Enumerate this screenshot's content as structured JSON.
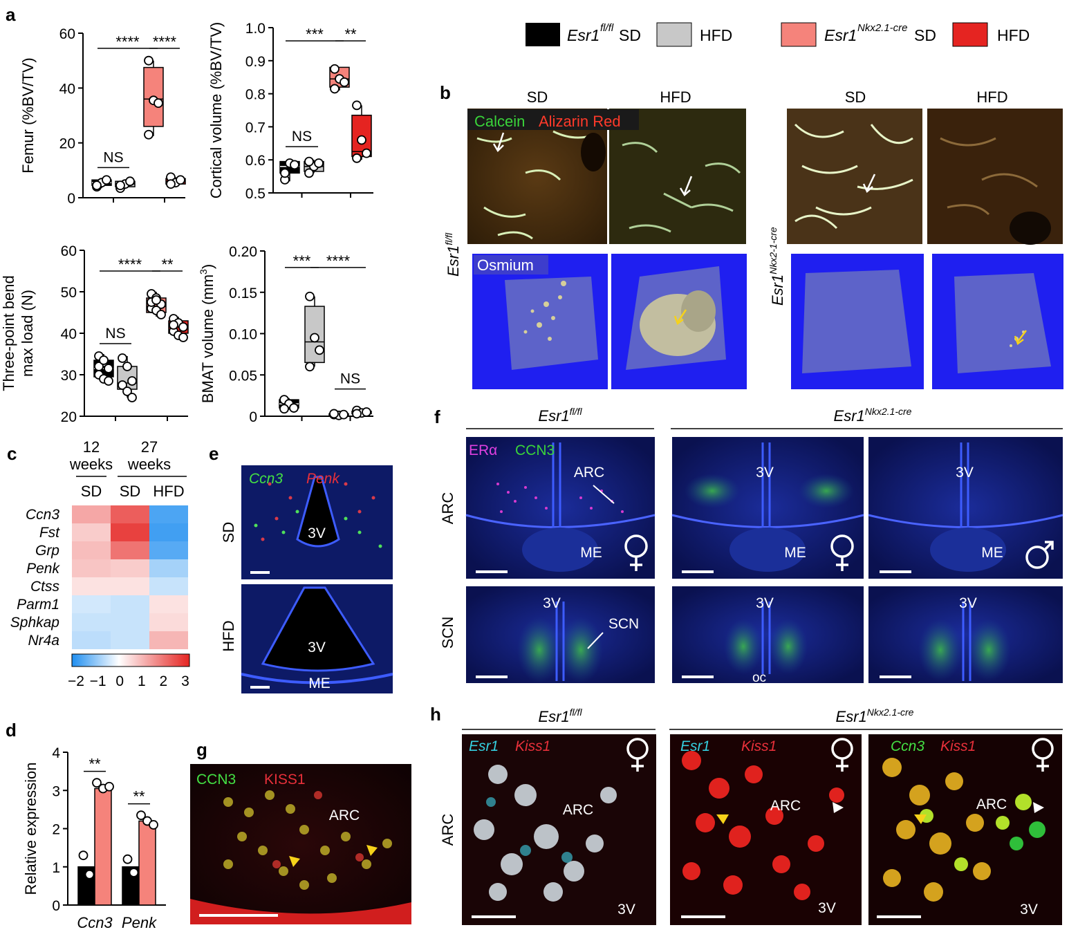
{
  "panel_letters": [
    "a",
    "b",
    "c",
    "d",
    "e",
    "f",
    "g",
    "h"
  ],
  "legend": [
    {
      "genotype": "Esr1",
      "sup": "fl/fl",
      "diet1": "SD",
      "diet2": "HFD",
      "color1": "#000000",
      "color2": "#c8c8c8"
    },
    {
      "genotype": "Esr1",
      "sup": "Nkx2.1-cre",
      "diet1": "SD",
      "diet2": "HFD",
      "color1": "#f5837b",
      "color2": "#e52421"
    }
  ],
  "colors": {
    "fl_sd": "#000000",
    "fl_hfd": "#c8c8c8",
    "cre_sd": "#f5837b",
    "cre_hfd": "#e52421"
  },
  "chart_data": [
    {
      "type": "box",
      "id": "femur",
      "ylabel": "Femur (%BV/TV)",
      "ylim": [
        0,
        60
      ],
      "yticks": [
        "0",
        "20",
        "40",
        "60"
      ],
      "groups": [
        {
          "series": "Esr1fl/fl SD",
          "color": "#000000",
          "q1": 4.5,
          "median": 5.5,
          "q3": 6.5,
          "min": 3.5,
          "max": 7,
          "points": [
            4,
            5.5,
            6.5,
            4.5
          ]
        },
        {
          "series": "Esr1fl/fl HFD",
          "color": "#c8c8c8",
          "q1": 4,
          "median": 5,
          "q3": 6,
          "min": 3.5,
          "max": 6,
          "points": [
            3.5,
            5,
            6,
            4.5
          ]
        },
        {
          "series": "Esr1Nkx2.1-cre SD",
          "color": "#f5837b",
          "q1": 26,
          "median": 36,
          "q3": 47.5,
          "min": 22.5,
          "max": 50,
          "points": [
            50,
            35.5,
            34.5,
            23
          ]
        },
        {
          "series": "Esr1Nkx2.1-cre HFD",
          "color": "#e52421",
          "q1": 5,
          "median": 6,
          "q3": 7,
          "min": 4.5,
          "max": 7.5,
          "points": [
            7.5,
            5.5,
            6.5,
            5
          ]
        }
      ],
      "xtick_positions": [
        1.5,
        3.5
      ],
      "significance": [
        {
          "from": 1,
          "to": 3,
          "label": "****",
          "y": 54.5
        },
        {
          "from": 3,
          "to": 4,
          "label": "****",
          "y": 54.5
        },
        {
          "from": 1,
          "to": 2,
          "label": "NS",
          "y": 11
        }
      ]
    },
    {
      "type": "box",
      "id": "cortical",
      "ylabel": "Cortical volume (%BV/TV)",
      "ylim": [
        0.5,
        1.0
      ],
      "yticks": [
        "0.5",
        "0.6",
        "0.7",
        "0.8",
        "0.9",
        "1.0"
      ],
      "groups": [
        {
          "series": "Esr1fl/fl SD",
          "color": "#000000",
          "q1": 0.56,
          "median": 0.58,
          "q3": 0.595,
          "min": 0.535,
          "max": 0.6,
          "points": [
            0.54,
            0.59,
            0.585,
            0.56
          ]
        },
        {
          "series": "Esr1fl/fl HFD",
          "color": "#c8c8c8",
          "q1": 0.565,
          "median": 0.58,
          "q3": 0.595,
          "min": 0.56,
          "max": 0.6,
          "points": [
            0.56,
            0.58,
            0.59,
            0.595
          ]
        },
        {
          "series": "Esr1Nkx2.1-cre SD",
          "color": "#f5837b",
          "q1": 0.82,
          "median": 0.845,
          "q3": 0.88,
          "min": 0.81,
          "max": 0.88,
          "points": [
            0.875,
            0.845,
            0.835,
            0.815
          ]
        },
        {
          "series": "Esr1Nkx2.1-cre HFD",
          "color": "#e52421",
          "q1": 0.61,
          "median": 0.625,
          "q3": 0.735,
          "min": 0.6,
          "max": 0.765,
          "points": [
            0.765,
            0.66,
            0.62,
            0.605
          ]
        }
      ],
      "xtick_positions": [
        1.5,
        3.5
      ],
      "significance": [
        {
          "from": 1,
          "to": 3,
          "label": "***",
          "y": 0.96
        },
        {
          "from": 3,
          "to": 4,
          "label": "**",
          "y": 0.96
        },
        {
          "from": 1,
          "to": 2,
          "label": "NS",
          "y": 0.64
        }
      ]
    },
    {
      "type": "box",
      "id": "threepoint",
      "ylabel_lines": [
        "Three-point bend",
        "max load (N)"
      ],
      "ylim": [
        20,
        60
      ],
      "yticks": [
        "20",
        "30",
        "40",
        "50",
        "60"
      ],
      "groups": [
        {
          "series": "Esr1fl/fl SD",
          "color": "#000000",
          "q1": 29.5,
          "median": 31.5,
          "q3": 33.5,
          "min": 28,
          "max": 35,
          "points": [
            34.5,
            33,
            31.5,
            30,
            29,
            28.5,
            32,
            33.5
          ]
        },
        {
          "series": "Esr1fl/fl HFD",
          "color": "#c8c8c8",
          "q1": 26.5,
          "median": 28,
          "q3": 32,
          "min": 24.5,
          "max": 34.5,
          "points": [
            34,
            32,
            28.5,
            27.5,
            26,
            24.5
          ]
        },
        {
          "series": "Esr1Nkx2.1-cre SD",
          "color": "#f5837b",
          "q1": 45,
          "median": 46.5,
          "q3": 48.5,
          "min": 44,
          "max": 50,
          "points": [
            49.5,
            48.5,
            47,
            46,
            45.5,
            44.5,
            47.5,
            48
          ]
        },
        {
          "series": "Esr1Nkx2.1-cre HFD",
          "color": "#e52421",
          "q1": 40,
          "median": 41.5,
          "q3": 43,
          "min": 38.5,
          "max": 44,
          "points": [
            43.5,
            42.5,
            41.5,
            40.5,
            39.5,
            39,
            42
          ]
        }
      ],
      "xtick_positions": [
        1.5,
        3.5
      ],
      "significance": [
        {
          "from": 1,
          "to": 3,
          "label": "****",
          "y": 55
        },
        {
          "from": 3,
          "to": 4,
          "label": "**",
          "y": 55
        },
        {
          "from": 1,
          "to": 2,
          "label": "NS",
          "y": 37.5
        }
      ]
    },
    {
      "type": "box",
      "id": "bmat",
      "ylabel": "BMAT volume (mm",
      "ylabel_sup": "3",
      "ylabel_end": ")",
      "ylim": [
        0,
        0.2
      ],
      "yticks": [
        "0",
        "0.05",
        "0.10",
        "0.15",
        "0.20"
      ],
      "groups": [
        {
          "series": "Esr1fl/fl SD",
          "color": "#000000",
          "q1": 0.01,
          "median": 0.015,
          "q3": 0.02,
          "min": 0.008,
          "max": 0.022,
          "points": [
            0.02,
            0.015,
            0.01,
            0.009
          ]
        },
        {
          "series": "Esr1fl/fl HFD",
          "color": "#c8c8c8",
          "q1": 0.065,
          "median": 0.09,
          "q3": 0.133,
          "min": 0.06,
          "max": 0.145,
          "points": [
            0.145,
            0.095,
            0.08,
            0.06
          ]
        },
        {
          "series": "Esr1Nkx2.1-cre SD",
          "color": "#f5837b",
          "q1": 0.001,
          "median": 0.002,
          "q3": 0.003,
          "min": 0.001,
          "max": 0.004,
          "points": [
            0.002,
            0.001,
            0.002,
            0.003
          ]
        },
        {
          "series": "Esr1Nkx2.1-cre HFD",
          "color": "#e52421",
          "q1": 0.003,
          "median": 0.004,
          "q3": 0.006,
          "min": 0.002,
          "max": 0.007,
          "points": [
            0.007,
            0.004,
            0.005,
            0.003
          ]
        }
      ],
      "xtick_positions": [
        1.5,
        3.5
      ],
      "significance": [
        {
          "from": 1,
          "to": 2,
          "label": "***",
          "y": 0.18
        },
        {
          "from": 2,
          "to": 4,
          "label": "****",
          "y": 0.18
        },
        {
          "from": 3,
          "to": 4,
          "label": "NS",
          "y": 0.033
        }
      ]
    },
    {
      "type": "heatmap",
      "id": "heatmap",
      "header_groups": [
        {
          "label_lines": [
            "12",
            "weeks"
          ]
        },
        {
          "label_lines": [
            "27",
            "weeks"
          ]
        }
      ],
      "columns": [
        "SD",
        "SD",
        "HFD"
      ],
      "rows": [
        "Ccn3",
        "Fst",
        "Grp",
        "Penk",
        "Ctss",
        "Parm1",
        "Sphkap",
        "Nr4a"
      ],
      "values": [
        [
          1.2,
          2.2,
          -1.6
        ],
        [
          0.7,
          2.6,
          -1.7
        ],
        [
          0.9,
          1.9,
          -1.5
        ],
        [
          0.8,
          0.7,
          -0.8
        ],
        [
          0.4,
          0.4,
          -0.5
        ],
        [
          -0.4,
          -0.5,
          0.4
        ],
        [
          -0.5,
          -0.5,
          0.5
        ],
        [
          -0.6,
          -0.5,
          1.0
        ]
      ],
      "colorbar": {
        "min": -2,
        "max": 3,
        "ticks": [
          "−2",
          "−1",
          "0",
          "1",
          "2",
          "3"
        ]
      }
    },
    {
      "type": "bar",
      "id": "relexpr",
      "ylabel": "Relative expression",
      "ylim": [
        0,
        4
      ],
      "yticks": [
        "0",
        "1",
        "2",
        "3",
        "4"
      ],
      "categories": [
        "Ccn3",
        "Penk"
      ],
      "series": [
        {
          "name": "Esr1fl/fl",
          "color": "#000000",
          "values": [
            1.0,
            1.0
          ],
          "points": [
            [
              1.3,
              0.8
            ],
            [
              1.2,
              0.85
            ]
          ]
        },
        {
          "name": "Esr1Nkx2.1-cre",
          "color": "#f5837b",
          "values": [
            3.05,
            2.2
          ],
          "points": [
            [
              3.2,
              3.05,
              3.1
            ],
            [
              2.35,
              2.2,
              2.1
            ]
          ]
        }
      ],
      "significance": [
        {
          "category": 0,
          "label": "**",
          "y": 3.5
        },
        {
          "category": 1,
          "label": "**",
          "y": 2.65
        }
      ]
    }
  ],
  "panel_b": {
    "col_headers": [
      "SD",
      "HFD",
      "SD",
      "HFD"
    ],
    "row_label_left": {
      "text": "Esr1",
      "sup": "fl/fl"
    },
    "row_label_right": {
      "text": "Esr1",
      "sup": "Nkx2-1-cre"
    },
    "stain_calcein": "Calcein",
    "stain_alizarin": "Alizarin Red",
    "stain_osmium": "Osmium"
  },
  "panel_e": {
    "rows": [
      "SD",
      "HFD"
    ],
    "label_ccn3": "Ccn3",
    "label_penk": "Penk",
    "region_3v": "3V",
    "region_me": "ME"
  },
  "panel_f": {
    "group_left": {
      "text": "Esr1",
      "sup": "fl/fl"
    },
    "group_right": {
      "text": "Esr1",
      "sup": "Nkx2.1-cre"
    },
    "rows": [
      "ARC",
      "SCN"
    ],
    "label_era": "ERα",
    "label_ccn3": "CCN3",
    "region_arc": "ARC",
    "region_3v": "3V",
    "region_me": "ME",
    "region_scn": "SCN",
    "region_oc": "oc"
  },
  "panel_g": {
    "label_ccn3": "CCN3",
    "label_kiss1": "KISS1",
    "region_arc": "ARC"
  },
  "panel_h": {
    "group_left": {
      "text": "Esr1",
      "sup": "fl/fl"
    },
    "group_right": {
      "text": "Esr1",
      "sup": "Nkx2.1-cre"
    },
    "row": "ARC",
    "label_esr1": "Esr1",
    "label_kiss1": "Kiss1",
    "label_ccn3": "Ccn3",
    "region_arc": "ARC",
    "region_3v": "3V"
  }
}
